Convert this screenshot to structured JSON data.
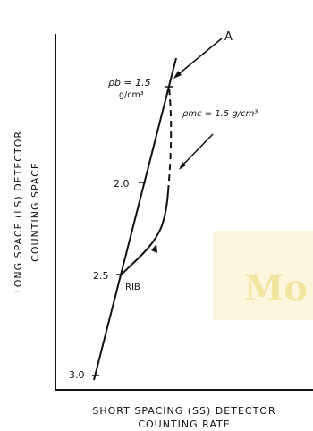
{
  "diagram": {
    "label_a": "A",
    "rho_b": "ρb = 1.5",
    "rho_b_unit": "g/cm³",
    "rho_mc": "ρmc = 1.5 g/cm³",
    "tick_20": "2.0",
    "tick_25": "2.5",
    "tick_30": "3.0",
    "rib_label": "RIB",
    "y_axis_line1": "LONG SPACE (LS) DETECTOR",
    "y_axis_line2": "COUNTING SPACE",
    "x_axis_line1": "SHORT SPACING (SS) DETECTOR",
    "x_axis_line2": "COUNTING RATE",
    "watermark": "Mo"
  },
  "colors": {
    "ink": "#111111",
    "watermark_bg": "#fbf6dc",
    "watermark_text": "#e9d870"
  }
}
